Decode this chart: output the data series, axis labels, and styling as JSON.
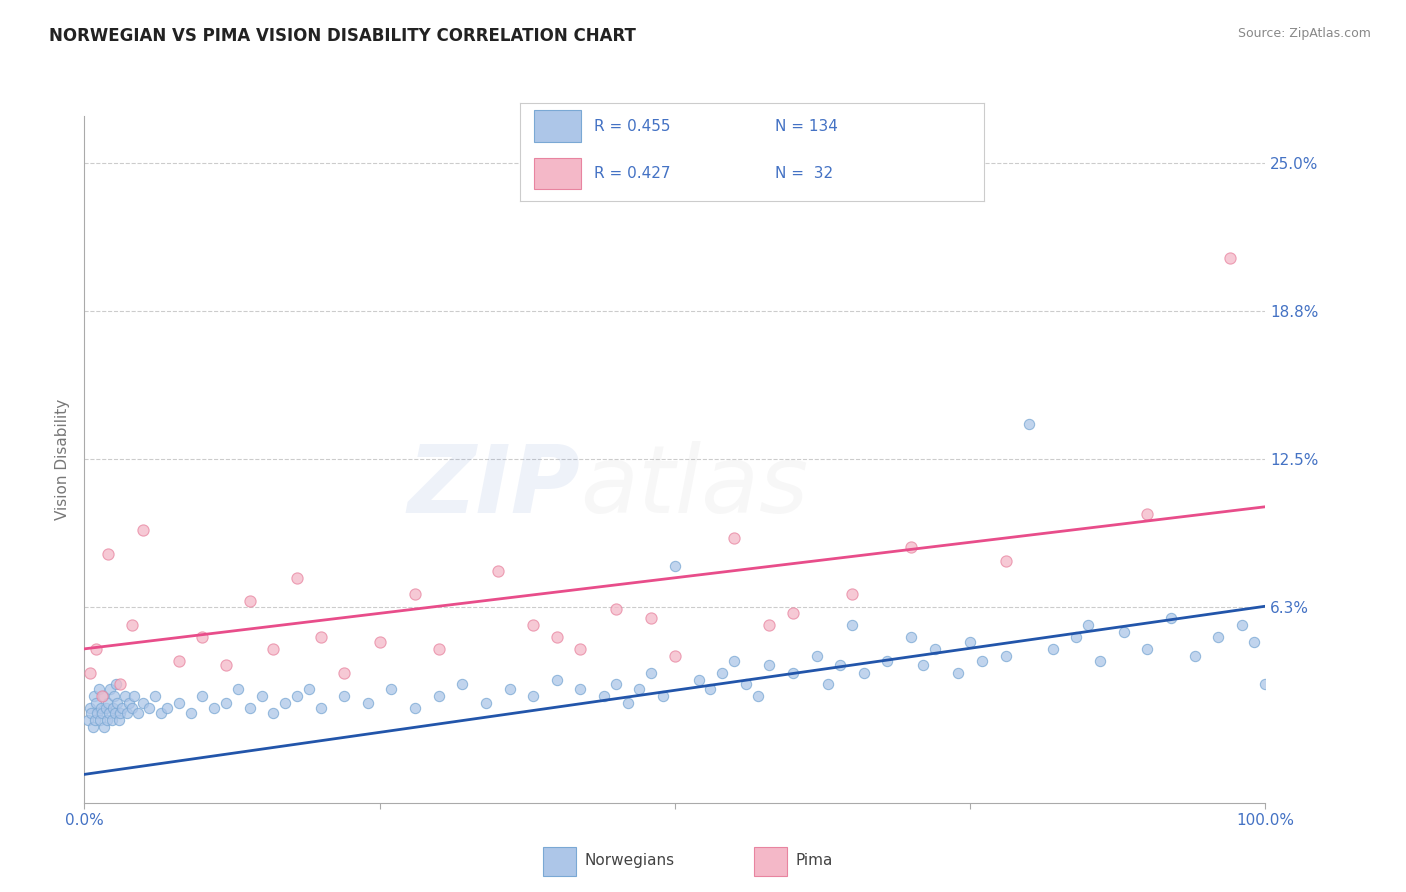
{
  "title": "NORWEGIAN VS PIMA VISION DISABILITY CORRELATION CHART",
  "source": "Source: ZipAtlas.com",
  "ylabel": "Vision Disability",
  "xlim": [
    0,
    100
  ],
  "ylim": [
    -2,
    27
  ],
  "ytick_positions": [
    6.25,
    12.5,
    18.75,
    25.0
  ],
  "ytick_labels": [
    "6.3%",
    "12.5%",
    "18.8%",
    "25.0%"
  ],
  "grid_color": "#cccccc",
  "background_color": "#ffffff",
  "title_color": "#222222",
  "tick_label_color": "#4472c4",
  "watermark_zip_color": "#4472c4",
  "watermark_atlas_color": "#aaaaaa",
  "series": [
    {
      "name": "Norwegians",
      "dot_color": "#adc6e8",
      "edge_color": "#7aa8d4",
      "R": "0.455",
      "N": "134",
      "trend_color": "#2255aa",
      "trend_x": [
        0,
        100
      ],
      "trend_y": [
        -0.8,
        6.3
      ]
    },
    {
      "name": "Pima",
      "dot_color": "#f4b8c8",
      "edge_color": "#e884a0",
      "R": "0.427",
      "N": " 32",
      "trend_color": "#e84d8a",
      "trend_x": [
        0,
        100
      ],
      "trend_y": [
        4.5,
        10.5
      ]
    }
  ],
  "legend_text_color": "#4472c4",
  "nor_x": [
    0.3,
    0.5,
    0.6,
    0.7,
    0.8,
    0.9,
    1.0,
    1.1,
    1.2,
    1.3,
    1.4,
    1.5,
    1.6,
    1.7,
    1.8,
    1.9,
    2.0,
    2.1,
    2.2,
    2.3,
    2.4,
    2.5,
    2.6,
    2.7,
    2.8,
    2.9,
    3.0,
    3.2,
    3.4,
    3.6,
    3.8,
    4.0,
    4.2,
    4.5,
    5.0,
    5.5,
    6.0,
    6.5,
    7.0,
    8.0,
    9.0,
    10.0,
    11.0,
    12.0,
    13.0,
    14.0,
    15.0,
    16.0,
    17.0,
    18.0,
    19.0,
    20.0,
    22.0,
    24.0,
    26.0,
    28.0,
    30.0,
    32.0,
    34.0,
    36.0,
    38.0,
    40.0,
    42.0,
    44.0,
    45.0,
    46.0,
    47.0,
    48.0,
    49.0,
    50.0,
    52.0,
    53.0,
    54.0,
    55.0,
    56.0,
    57.0,
    58.0,
    60.0,
    62.0,
    63.0,
    64.0,
    65.0,
    66.0,
    68.0,
    70.0,
    71.0,
    72.0,
    74.0,
    75.0,
    76.0,
    78.0,
    80.0,
    82.0,
    84.0,
    85.0,
    86.0,
    88.0,
    90.0,
    92.0,
    94.0,
    96.0,
    98.0,
    99.0,
    100.0
  ],
  "nor_y": [
    1.5,
    2.0,
    1.8,
    1.2,
    2.5,
    1.5,
    2.2,
    1.8,
    2.8,
    1.5,
    2.0,
    1.8,
    2.5,
    1.2,
    2.0,
    1.5,
    2.2,
    1.8,
    2.8,
    1.5,
    2.0,
    2.5,
    1.8,
    3.0,
    2.2,
    1.5,
    1.8,
    2.0,
    2.5,
    1.8,
    2.2,
    2.0,
    2.5,
    1.8,
    2.2,
    2.0,
    2.5,
    1.8,
    2.0,
    2.2,
    1.8,
    2.5,
    2.0,
    2.2,
    2.8,
    2.0,
    2.5,
    1.8,
    2.2,
    2.5,
    2.8,
    2.0,
    2.5,
    2.2,
    2.8,
    2.0,
    2.5,
    3.0,
    2.2,
    2.8,
    2.5,
    3.2,
    2.8,
    2.5,
    3.0,
    2.2,
    2.8,
    3.5,
    2.5,
    8.0,
    3.2,
    2.8,
    3.5,
    4.0,
    3.0,
    2.5,
    3.8,
    3.5,
    4.2,
    3.0,
    3.8,
    5.5,
    3.5,
    4.0,
    5.0,
    3.8,
    4.5,
    3.5,
    4.8,
    4.0,
    4.2,
    14.0,
    4.5,
    5.0,
    5.5,
    4.0,
    5.2,
    4.5,
    5.8,
    4.2,
    5.0,
    5.5,
    4.8,
    3.0
  ],
  "pima_x": [
    0.5,
    1.0,
    1.5,
    2.0,
    3.0,
    4.0,
    5.0,
    8.0,
    10.0,
    12.0,
    14.0,
    16.0,
    18.0,
    20.0,
    22.0,
    25.0,
    28.0,
    30.0,
    35.0,
    38.0,
    40.0,
    42.0,
    45.0,
    48.0,
    50.0,
    55.0,
    58.0,
    60.0,
    65.0,
    70.0,
    78.0,
    90.0,
    97.0
  ],
  "pima_y": [
    3.5,
    4.5,
    2.5,
    8.5,
    3.0,
    5.5,
    9.5,
    4.0,
    5.0,
    3.8,
    6.5,
    4.5,
    7.5,
    5.0,
    3.5,
    4.8,
    6.8,
    4.5,
    7.8,
    5.5,
    5.0,
    4.5,
    6.2,
    5.8,
    4.2,
    9.2,
    5.5,
    6.0,
    6.8,
    8.8,
    8.2,
    10.2,
    21.0
  ]
}
